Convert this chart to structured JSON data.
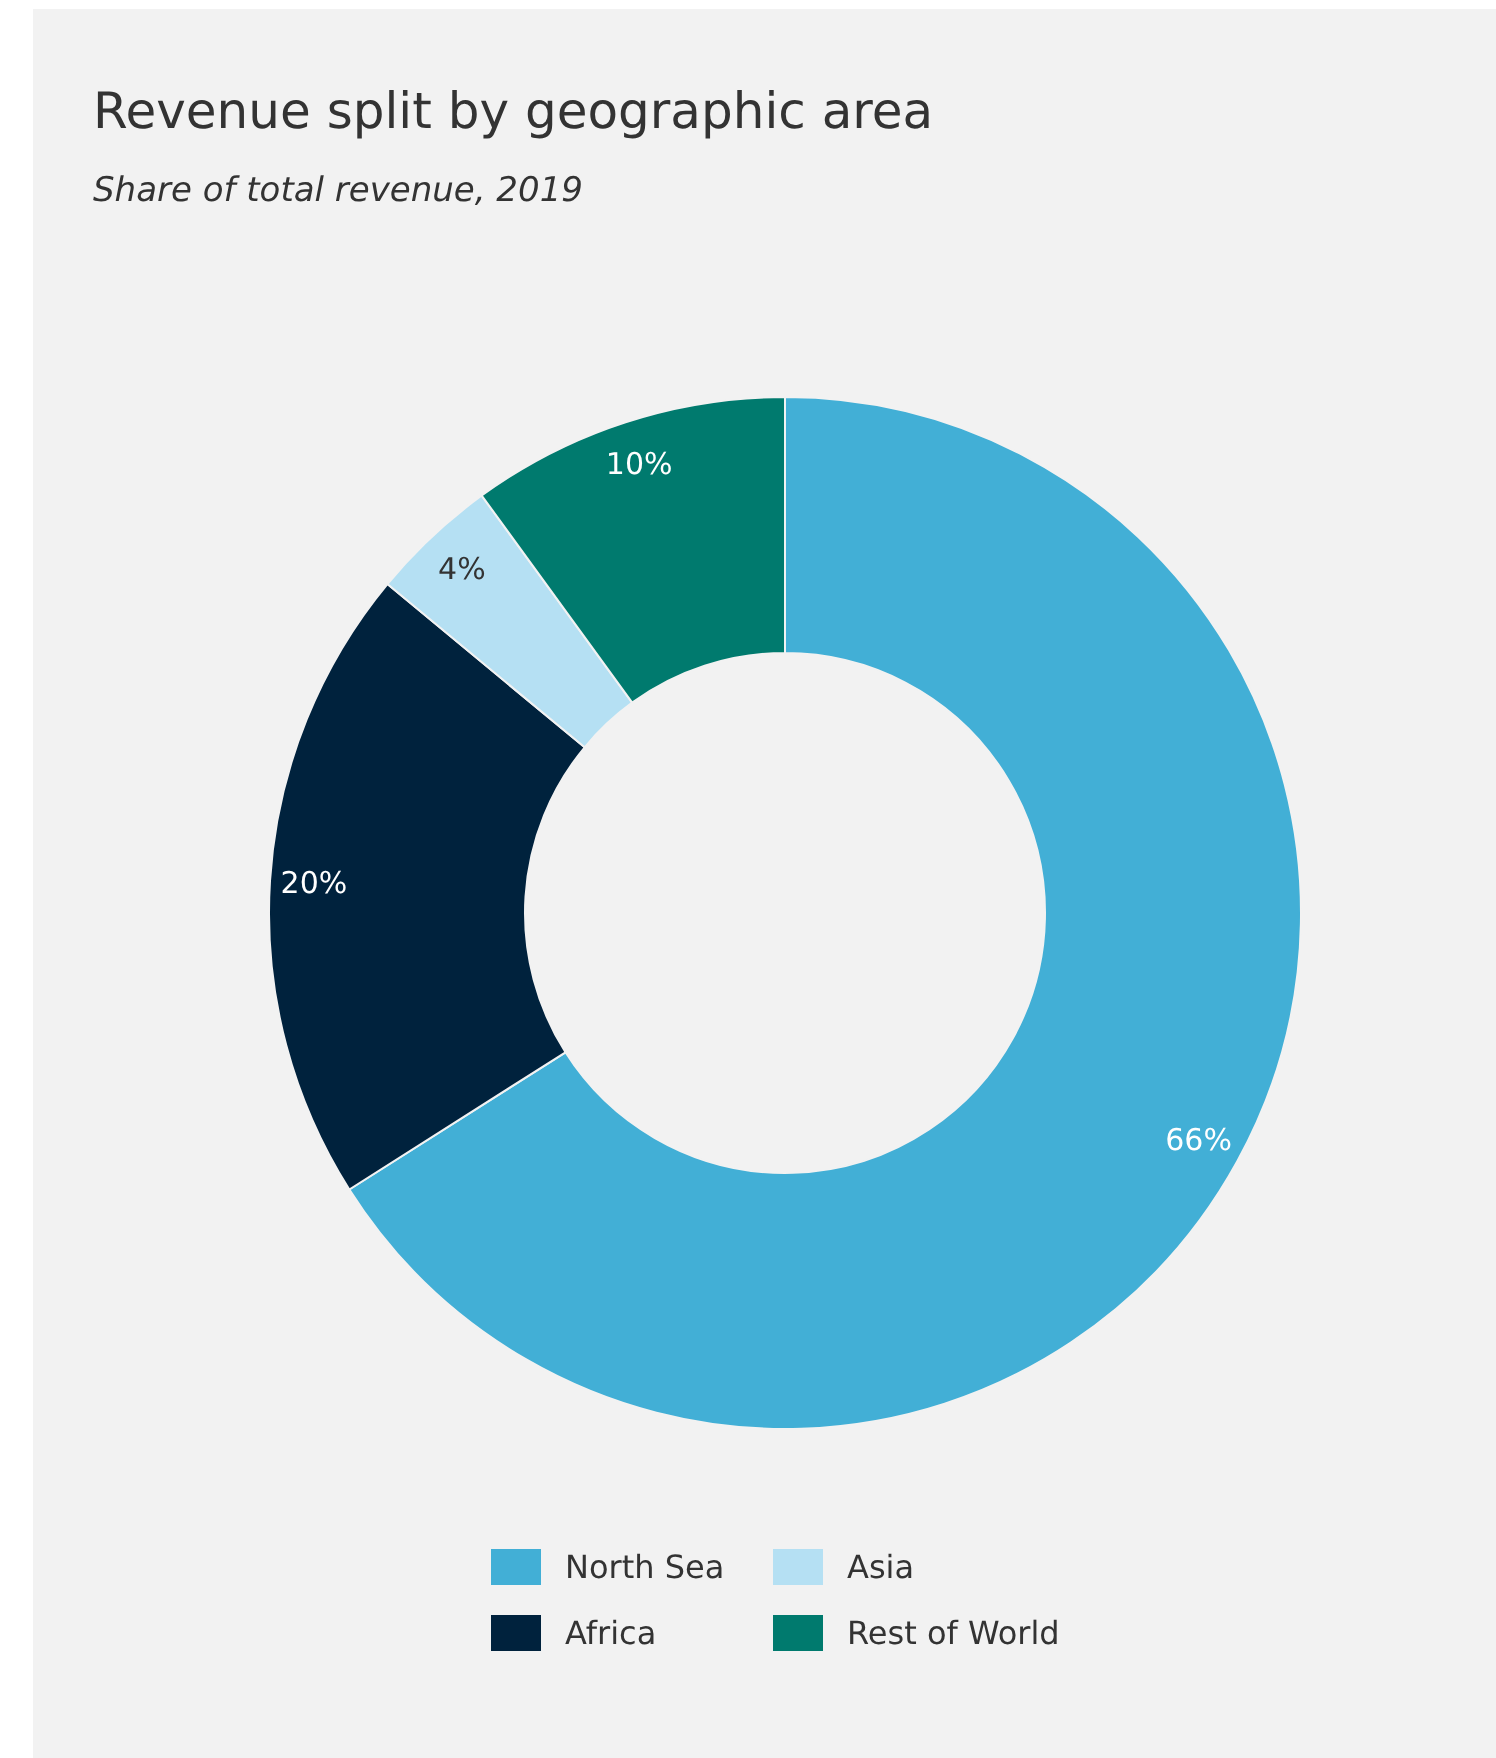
{
  "chart_data": {
    "type": "donut",
    "title": "Revenue split by geographic area",
    "subtitle": "Share of total revenue, 2019",
    "categories": [
      "North Sea",
      "Africa",
      "Asia",
      "Rest of World"
    ],
    "values": [
      66,
      20,
      4,
      10
    ],
    "value_labels": [
      "66%",
      "20%",
      "4%",
      "10%"
    ],
    "colors": [
      "#42afd6",
      "#00223d",
      "#b5e0f3",
      "#007a6e"
    ],
    "legend": "bottom"
  }
}
